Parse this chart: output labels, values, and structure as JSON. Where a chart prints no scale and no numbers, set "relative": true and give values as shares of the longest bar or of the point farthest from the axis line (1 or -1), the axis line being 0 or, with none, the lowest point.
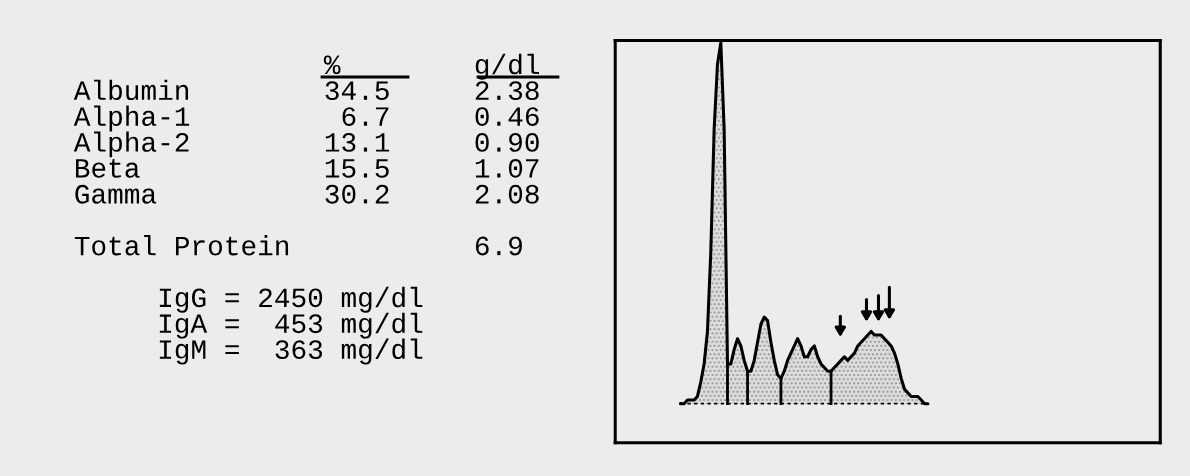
{
  "chart_data": [
    {
      "type": "other",
      "annotations": [
        "               %        g/dl\nAlbumin        34.5     2.38\nAlpha-1         6.7     0.46\nAlpha-2        13.1     0.90\nBeta           15.5     1.07\nGamma          30.2     2.08\n\nTotal Protein           6.9\n\n     IgG = 2450 mg/dl\n     IgA =  453 mg/dl\n     IgM =  363 mg/dl"
      ]
    },
    {
      "type": "area",
      "relative": true,
      "categories": [
        null,
        null,
        null,
        null,
        null,
        null,
        null,
        null,
        null,
        null,
        null,
        null,
        null,
        null,
        null,
        null,
        null,
        null,
        null,
        null,
        null,
        null,
        null,
        null,
        null,
        null,
        null,
        null,
        null,
        null,
        null,
        null,
        null,
        null,
        null,
        null,
        null,
        null,
        null,
        null,
        null,
        null,
        null,
        null,
        null,
        null,
        null,
        null,
        null,
        null,
        null,
        null,
        null,
        null,
        null,
        null,
        null,
        null,
        null,
        null,
        null,
        null,
        null,
        null,
        null,
        null,
        null,
        null,
        null,
        null,
        null,
        null,
        null,
        null,
        null
      ],
      "series": [
        {
          "color": "#dcdcdc",
          "values": [
            0.0,
            0.0,
            0.01,
            0.01,
            0.01,
            0.02,
            0.06,
            0.11,
            0.2,
            0.42,
            0.76,
            0.94,
            1.0,
            0.76,
            0.11,
            null,
            null,
            null,
            null,
            null,
            null,
            null,
            null,
            null,
            null,
            null,
            null,
            null,
            null,
            null,
            null,
            null,
            null,
            null,
            null,
            null,
            null,
            null,
            null,
            null,
            null,
            null,
            null,
            null,
            null,
            null,
            null,
            null,
            null,
            null,
            null,
            null,
            null,
            null,
            null,
            null,
            null,
            null,
            null,
            null,
            null,
            null,
            null,
            null,
            null,
            null,
            null,
            null,
            null,
            null,
            null,
            null,
            null,
            null,
            null
          ]
        },
        {
          "color": "#dcdcdc",
          "values": [
            null,
            null,
            null,
            null,
            null,
            null,
            null,
            null,
            null,
            null,
            null,
            null,
            null,
            null,
            0.11,
            0.11,
            0.15,
            0.18,
            0.16,
            0.12,
            0.09,
            null,
            null,
            null,
            null,
            null,
            null,
            null,
            null,
            null,
            null,
            null,
            null,
            null,
            null,
            null,
            null,
            null,
            null,
            null,
            null,
            null,
            null,
            null,
            null,
            null,
            null,
            null,
            null,
            null,
            null,
            null,
            null,
            null,
            null,
            null,
            null,
            null,
            null,
            null,
            null,
            null,
            null,
            null,
            null,
            null,
            null,
            null,
            null,
            null,
            null,
            null,
            null,
            null,
            null
          ]
        },
        {
          "color": "#dcdcdc",
          "values": [
            null,
            null,
            null,
            null,
            null,
            null,
            null,
            null,
            null,
            null,
            null,
            null,
            null,
            null,
            null,
            null,
            null,
            null,
            null,
            null,
            0.09,
            0.09,
            0.12,
            0.17,
            0.22,
            0.24,
            0.23,
            0.17,
            0.12,
            0.08,
            0.07,
            null,
            null,
            null,
            null,
            null,
            null,
            null,
            null,
            null,
            null,
            null,
            null,
            null,
            null,
            null,
            null,
            null,
            null,
            null,
            null,
            null,
            null,
            null,
            null,
            null,
            null,
            null,
            null,
            null,
            null,
            null,
            null,
            null,
            null,
            null,
            null,
            null,
            null,
            null,
            null,
            null,
            null,
            null,
            null
          ]
        },
        {
          "color": "#dcdcdc",
          "values": [
            null,
            null,
            null,
            null,
            null,
            null,
            null,
            null,
            null,
            null,
            null,
            null,
            null,
            null,
            null,
            null,
            null,
            null,
            null,
            null,
            null,
            null,
            null,
            null,
            null,
            null,
            null,
            null,
            null,
            null,
            0.07,
            0.09,
            0.12,
            0.14,
            0.16,
            0.18,
            0.16,
            0.13,
            0.13,
            0.15,
            0.16,
            0.13,
            0.11,
            0.1,
            0.09,
            0.09,
            null,
            null,
            null,
            null,
            null,
            null,
            null,
            null,
            null,
            null,
            null,
            null,
            null,
            null,
            null,
            null,
            null,
            null,
            null,
            null,
            null,
            null,
            null,
            null,
            null,
            null,
            null,
            null,
            null
          ]
        },
        {
          "color": "#dcdcdc",
          "values": [
            null,
            null,
            null,
            null,
            null,
            null,
            null,
            null,
            null,
            null,
            null,
            null,
            null,
            null,
            null,
            null,
            null,
            null,
            null,
            null,
            null,
            null,
            null,
            null,
            null,
            null,
            null,
            null,
            null,
            null,
            null,
            null,
            null,
            null,
            null,
            null,
            null,
            null,
            null,
            null,
            null,
            null,
            null,
            null,
            null,
            0.09,
            0.1,
            0.11,
            0.12,
            0.13,
            0.12,
            0.13,
            0.14,
            0.16,
            0.17,
            0.18,
            0.19,
            0.2,
            0.19,
            0.19,
            0.19,
            0.18,
            0.17,
            0.16,
            0.14,
            0.11,
            0.07,
            0.04,
            0.03,
            0.02,
            0.02,
            0.02,
            0.01,
            0.0,
            0.0
          ]
        }
      ]
    }
  ]
}
